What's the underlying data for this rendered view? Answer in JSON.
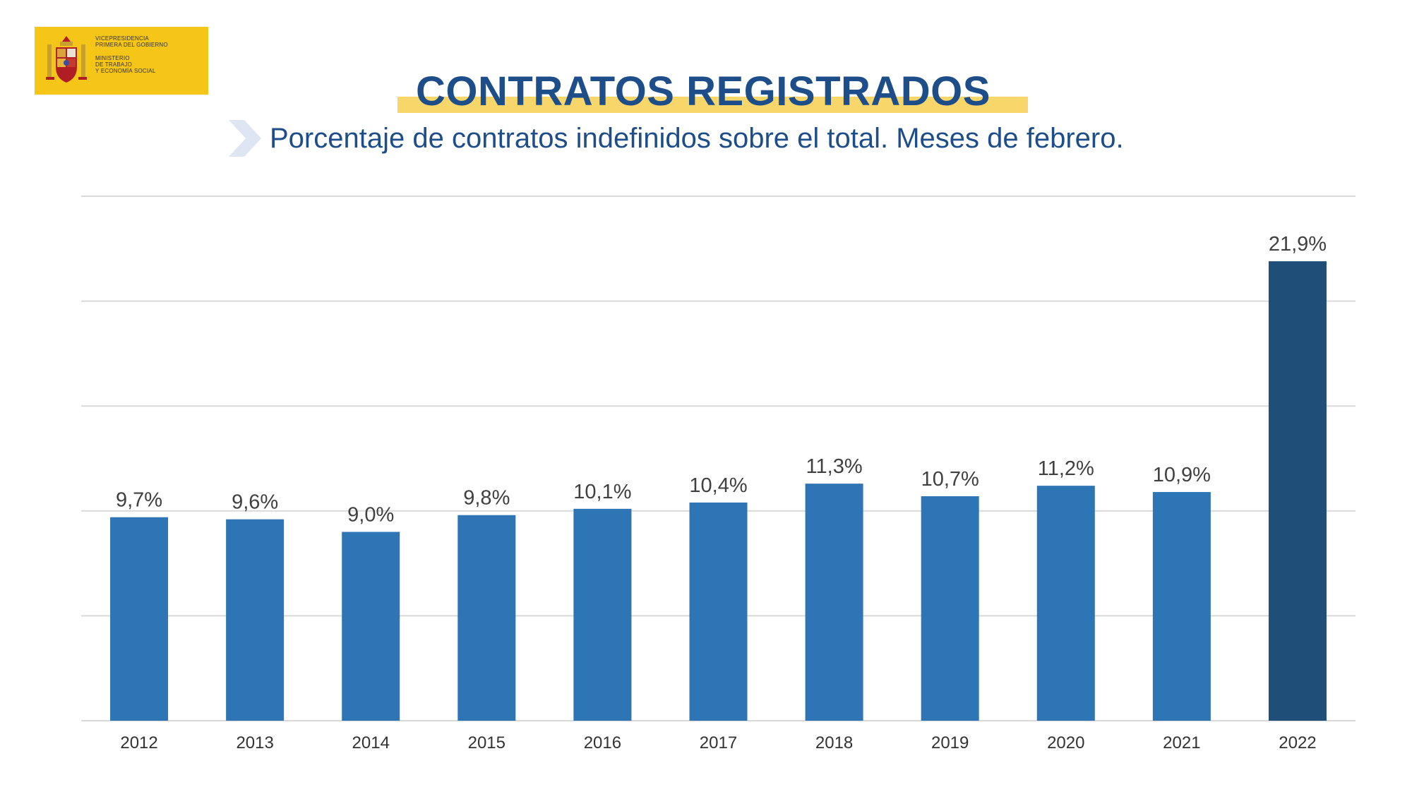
{
  "logo": {
    "lines_top": [
      "VICEPRESIDENCIA",
      "PRIMERA DEL GOBIERNO"
    ],
    "lines_bottom": [
      "MINISTERIO",
      "DE TRABAJO",
      "Y ECONOMÍA SOCIAL"
    ]
  },
  "header": {
    "title": "CONTRATOS REGISTRADOS",
    "subtitle": "Porcentaje de contratos indefinidos sobre el total. Meses de febrero."
  },
  "colors": {
    "bar": "#2e75b6",
    "bar_highlight": "#1f4e79",
    "grid": "#d9d9d9",
    "title": "#1d4e89",
    "title_underline": "#f8d66a",
    "logo_bg": "#f5c518"
  },
  "chart_data": {
    "type": "bar",
    "categories": [
      "2012",
      "2013",
      "2014",
      "2015",
      "2016",
      "2017",
      "2018",
      "2019",
      "2020",
      "2021",
      "2022"
    ],
    "values": [
      9.7,
      9.6,
      9.0,
      9.8,
      10.1,
      10.4,
      11.3,
      10.7,
      11.2,
      10.9,
      21.9
    ],
    "data_labels": [
      "9,7%",
      "9,6%",
      "9,0%",
      "9,8%",
      "10,1%",
      "10,4%",
      "11,3%",
      "10,7%",
      "11,2%",
      "10,9%",
      "21,9%"
    ],
    "highlight_index": 10,
    "ylim": [
      0,
      25
    ],
    "gridlines": [
      0,
      5,
      10,
      15,
      20,
      25
    ],
    "y_tick_labels_shown": false,
    "grid": true,
    "legend": "none"
  }
}
